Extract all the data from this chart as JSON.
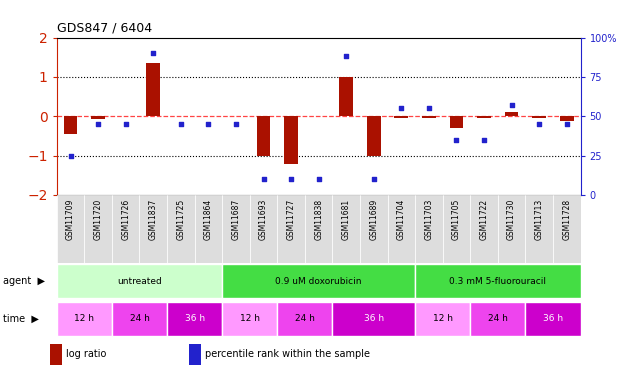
{
  "title": "GDS847 / 6404",
  "samples": [
    "GSM11709",
    "GSM11720",
    "GSM11726",
    "GSM11837",
    "GSM11725",
    "GSM11864",
    "GSM11687",
    "GSM11693",
    "GSM11727",
    "GSM11838",
    "GSM11681",
    "GSM11689",
    "GSM11704",
    "GSM11703",
    "GSM11705",
    "GSM11722",
    "GSM11730",
    "GSM11713",
    "GSM11728"
  ],
  "log_ratio": [
    -0.45,
    -0.08,
    0.0,
    1.35,
    0.0,
    0.0,
    0.0,
    -1.0,
    -1.2,
    0.0,
    1.0,
    -1.0,
    -0.05,
    -0.05,
    -0.3,
    -0.05,
    0.12,
    -0.05,
    -0.12
  ],
  "percentile": [
    25,
    45,
    45,
    90,
    45,
    45,
    45,
    10,
    10,
    10,
    88,
    10,
    55,
    55,
    35,
    35,
    57,
    45,
    45
  ],
  "ylim_left": [
    -2,
    2
  ],
  "ylim_right": [
    0,
    100
  ],
  "yticks_left": [
    -2,
    -1,
    0,
    1,
    2
  ],
  "yticks_right": [
    0,
    25,
    50,
    75,
    100
  ],
  "agents": [
    {
      "label": "untreated",
      "start": 0,
      "end": 6,
      "color": "#CCFFCC"
    },
    {
      "label": "0.9 uM doxorubicin",
      "start": 6,
      "end": 13,
      "color": "#44DD44"
    },
    {
      "label": "0.3 mM 5-fluorouracil",
      "start": 13,
      "end": 19,
      "color": "#44DD44"
    }
  ],
  "times": [
    {
      "label": "12 h",
      "start": 0,
      "end": 2,
      "color": "#FF99FF"
    },
    {
      "label": "24 h",
      "start": 2,
      "end": 4,
      "color": "#EE44EE"
    },
    {
      "label": "36 h",
      "start": 4,
      "end": 6,
      "color": "#CC00CC"
    },
    {
      "label": "12 h",
      "start": 6,
      "end": 8,
      "color": "#FF99FF"
    },
    {
      "label": "24 h",
      "start": 8,
      "end": 10,
      "color": "#EE44EE"
    },
    {
      "label": "36 h",
      "start": 10,
      "end": 13,
      "color": "#CC00CC"
    },
    {
      "label": "12 h",
      "start": 13,
      "end": 15,
      "color": "#FF99FF"
    },
    {
      "label": "24 h",
      "start": 15,
      "end": 17,
      "color": "#EE44EE"
    },
    {
      "label": "36 h",
      "start": 17,
      "end": 19,
      "color": "#CC00CC"
    }
  ],
  "bar_color": "#AA1100",
  "dot_color": "#2222CC",
  "hline0_color": "#FF4444",
  "hline_dotted_color": "black",
  "background_color": "white",
  "left_color": "#CC2200",
  "right_color": "#2222CC",
  "sample_bg": "#DDDDDD"
}
